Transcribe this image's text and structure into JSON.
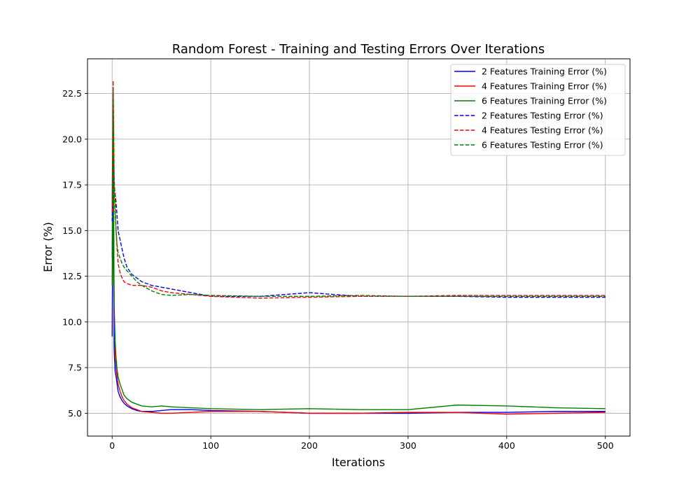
{
  "chart_data": {
    "type": "line",
    "title": "Random Forest - Training and Testing Errors Over Iterations",
    "xlabel": "Iterations",
    "ylabel": "Error (%)",
    "xlim": [
      -25,
      525
    ],
    "ylim": [
      3.75,
      24.4
    ],
    "xticks": [
      0,
      100,
      200,
      300,
      400,
      500
    ],
    "xtick_labels": [
      "0",
      "100",
      "200",
      "300",
      "400",
      "500"
    ],
    "yticks": [
      5.0,
      7.5,
      10.0,
      12.5,
      15.0,
      17.5,
      20.0,
      22.5
    ],
    "ytick_labels": [
      "5.0",
      "7.5",
      "10.0",
      "12.5",
      "15.0",
      "17.5",
      "20.0",
      "22.5"
    ],
    "grid": true,
    "legend_position": "top-right",
    "series": [
      {
        "name": "2 Features Training Error (%)",
        "color": "#0000ff",
        "dash": "solid",
        "x": [
          0,
          1,
          2,
          3,
          4,
          5,
          6,
          8,
          10,
          12,
          15,
          20,
          25,
          30,
          40,
          50,
          60,
          80,
          100,
          150,
          200,
          250,
          300,
          350,
          400,
          450,
          500
        ],
        "y": [
          9.2,
          18.0,
          8.5,
          7.3,
          7.0,
          6.6,
          6.2,
          5.9,
          5.7,
          5.55,
          5.4,
          5.25,
          5.15,
          5.1,
          5.1,
          5.15,
          5.2,
          5.2,
          5.15,
          5.1,
          5.0,
          5.0,
          5.0,
          5.05,
          5.05,
          5.1,
          5.1
        ]
      },
      {
        "name": "4 Features Training Error (%)",
        "color": "#ff0000",
        "dash": "solid",
        "x": [
          0,
          1,
          2,
          3,
          4,
          5,
          6,
          8,
          10,
          12,
          15,
          20,
          25,
          30,
          40,
          50,
          60,
          80,
          100,
          150,
          200,
          250,
          300,
          350,
          400,
          450,
          500
        ],
        "y": [
          13.5,
          22.0,
          10.5,
          8.4,
          7.5,
          7.0,
          6.6,
          6.2,
          5.9,
          5.7,
          5.5,
          5.3,
          5.2,
          5.1,
          5.05,
          5.0,
          5.0,
          5.05,
          5.1,
          5.1,
          5.0,
          5.0,
          5.05,
          5.05,
          4.95,
          5.0,
          5.05
        ]
      },
      {
        "name": "6 Features Training Error (%)",
        "color": "#008000",
        "dash": "solid",
        "x": [
          0,
          1,
          2,
          3,
          4,
          5,
          6,
          8,
          10,
          12,
          15,
          20,
          25,
          30,
          40,
          50,
          60,
          80,
          100,
          150,
          200,
          250,
          300,
          350,
          400,
          450,
          500
        ],
        "y": [
          12.0,
          22.5,
          11.0,
          9.0,
          8.0,
          7.4,
          7.0,
          6.6,
          6.3,
          6.0,
          5.8,
          5.6,
          5.5,
          5.4,
          5.35,
          5.4,
          5.35,
          5.3,
          5.25,
          5.2,
          5.25,
          5.2,
          5.2,
          5.45,
          5.4,
          5.3,
          5.25
        ]
      },
      {
        "name": "2 Features Testing Error (%)",
        "color": "#0000ff",
        "dash": "dashed",
        "x": [
          0,
          1,
          2,
          3,
          4,
          5,
          6,
          8,
          10,
          12,
          15,
          20,
          25,
          30,
          40,
          50,
          60,
          80,
          100,
          150,
          200,
          250,
          300,
          350,
          400,
          450,
          500
        ],
        "y": [
          15.5,
          19.0,
          17.5,
          17.0,
          16.5,
          15.8,
          15.0,
          14.5,
          14.0,
          13.5,
          13.0,
          12.6,
          12.4,
          12.2,
          12.0,
          11.9,
          11.8,
          11.6,
          11.4,
          11.4,
          11.6,
          11.4,
          11.4,
          11.4,
          11.35,
          11.35,
          11.35
        ]
      },
      {
        "name": "4 Features Testing Error (%)",
        "color": "#ff0000",
        "dash": "dashed",
        "x": [
          0,
          1,
          2,
          3,
          4,
          5,
          6,
          8,
          10,
          12,
          15,
          20,
          25,
          30,
          40,
          50,
          60,
          80,
          100,
          150,
          200,
          250,
          300,
          350,
          400,
          450,
          500
        ],
        "y": [
          16.0,
          23.2,
          18.0,
          16.5,
          15.0,
          14.0,
          13.2,
          12.7,
          12.4,
          12.2,
          12.1,
          12.0,
          12.0,
          12.0,
          11.9,
          11.7,
          11.6,
          11.5,
          11.4,
          11.3,
          11.35,
          11.4,
          11.4,
          11.45,
          11.45,
          11.45,
          11.45
        ]
      },
      {
        "name": "6 Features Testing Error (%)",
        "color": "#008000",
        "dash": "dashed",
        "x": [
          0,
          1,
          2,
          3,
          4,
          5,
          6,
          8,
          10,
          12,
          15,
          20,
          25,
          30,
          40,
          50,
          60,
          80,
          100,
          150,
          200,
          250,
          300,
          350,
          400,
          450,
          500
        ],
        "y": [
          16.5,
          22.8,
          17.5,
          16.0,
          15.0,
          14.2,
          13.8,
          13.5,
          13.2,
          13.0,
          12.8,
          12.5,
          12.2,
          12.0,
          11.7,
          11.5,
          11.45,
          11.5,
          11.45,
          11.4,
          11.4,
          11.45,
          11.4,
          11.4,
          11.4,
          11.4,
          11.4
        ]
      }
    ]
  }
}
